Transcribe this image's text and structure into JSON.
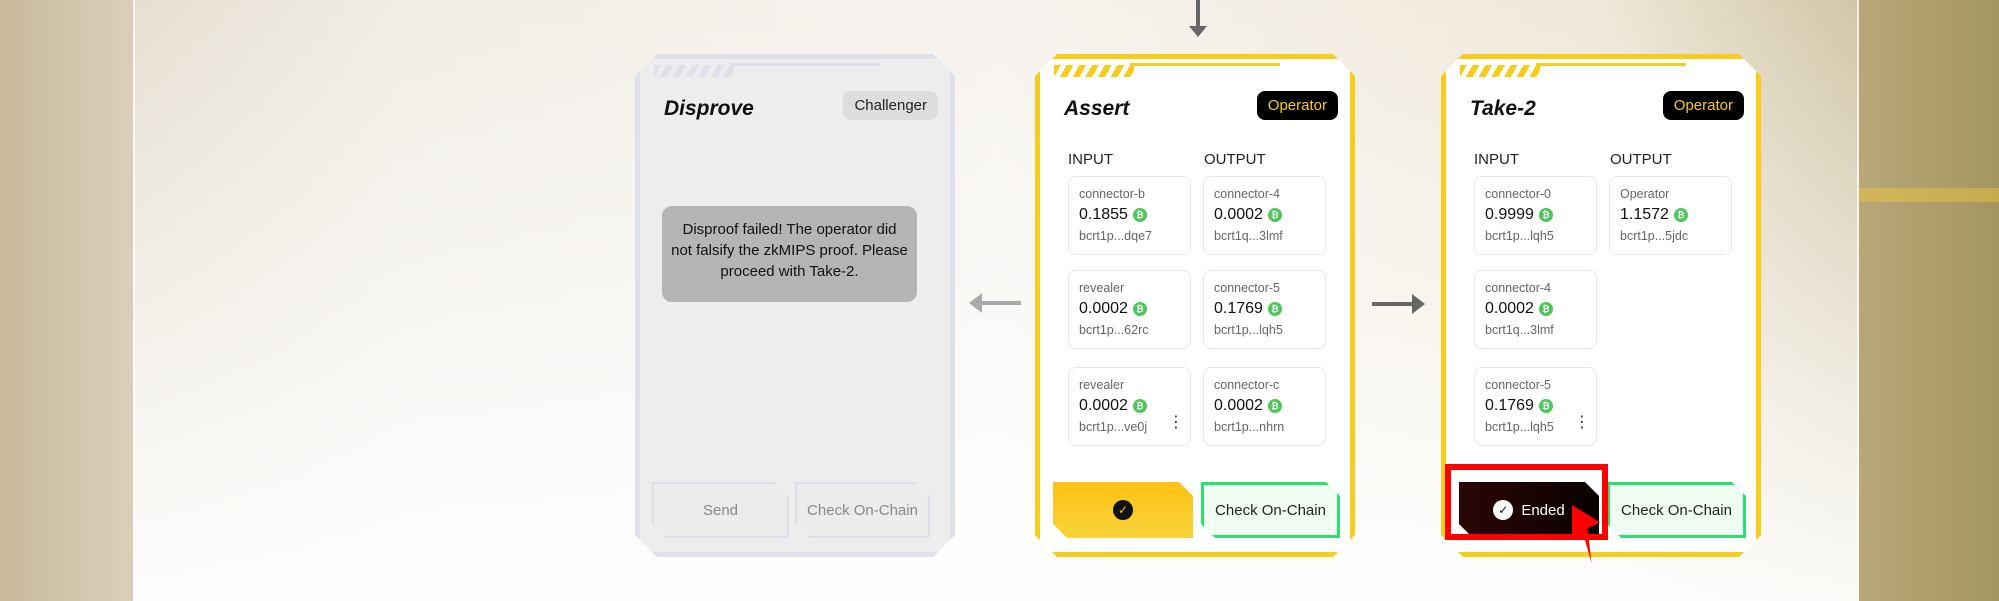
{
  "cards": [
    {
      "title": "Disprove",
      "role": "Challenger",
      "disabled": true,
      "message": "Disproof failed! The operator did not falsify the zkMIPS proof. Please proceed with Take-2.",
      "buttons": [
        "Send",
        "Check On-Chain"
      ]
    },
    {
      "title": "Assert",
      "role": "Operator",
      "input_label": "INPUT",
      "output_label": "OUTPUT",
      "inputs": [
        {
          "name": "connector-b",
          "amount": "0.1855",
          "address": "bcrt1p...dqe7"
        },
        {
          "name": "revealer",
          "amount": "0.0002",
          "address": "bcrt1p...62rc"
        },
        {
          "name": "revealer",
          "amount": "0.0002",
          "address": "bcrt1p...ve0j"
        }
      ],
      "outputs": [
        {
          "name": "connector-4",
          "amount": "0.0002",
          "address": "bcrt1q...3lmf"
        },
        {
          "name": "connector-5",
          "amount": "0.1769",
          "address": "bcrt1p...lqh5"
        },
        {
          "name": "connector-c",
          "amount": "0.0002",
          "address": "bcrt1p...nhrn"
        }
      ],
      "status_button": {
        "label": "",
        "icon": "check-circle-icon",
        "color": "#fdc214"
      },
      "check_label": "Check On-Chain"
    },
    {
      "title": "Take-2",
      "role": "Operator",
      "input_label": "INPUT",
      "output_label": "OUTPUT",
      "inputs": [
        {
          "name": "connector-0",
          "amount": "0.9999",
          "address": "bcrt1p...lqh5"
        },
        {
          "name": "connector-4",
          "amount": "0.0002",
          "address": "bcrt1q...3lmf"
        },
        {
          "name": "connector-5",
          "amount": "0.1769",
          "address": "bcrt1p...lqh5"
        }
      ],
      "outputs": [
        {
          "name": "Operator",
          "amount": "1.1572",
          "address": "bcrt1p...5jdc"
        }
      ],
      "status_button": {
        "label": "Ended",
        "icon": "check-circle-icon",
        "color": "#1a0505",
        "highlighted": true
      },
      "check_label": "Check On-Chain"
    }
  ],
  "colors": {
    "accent": "#f8cc1a",
    "btc": "#4fc65a",
    "check": "#27e36b",
    "highlight": "#ff0000"
  }
}
